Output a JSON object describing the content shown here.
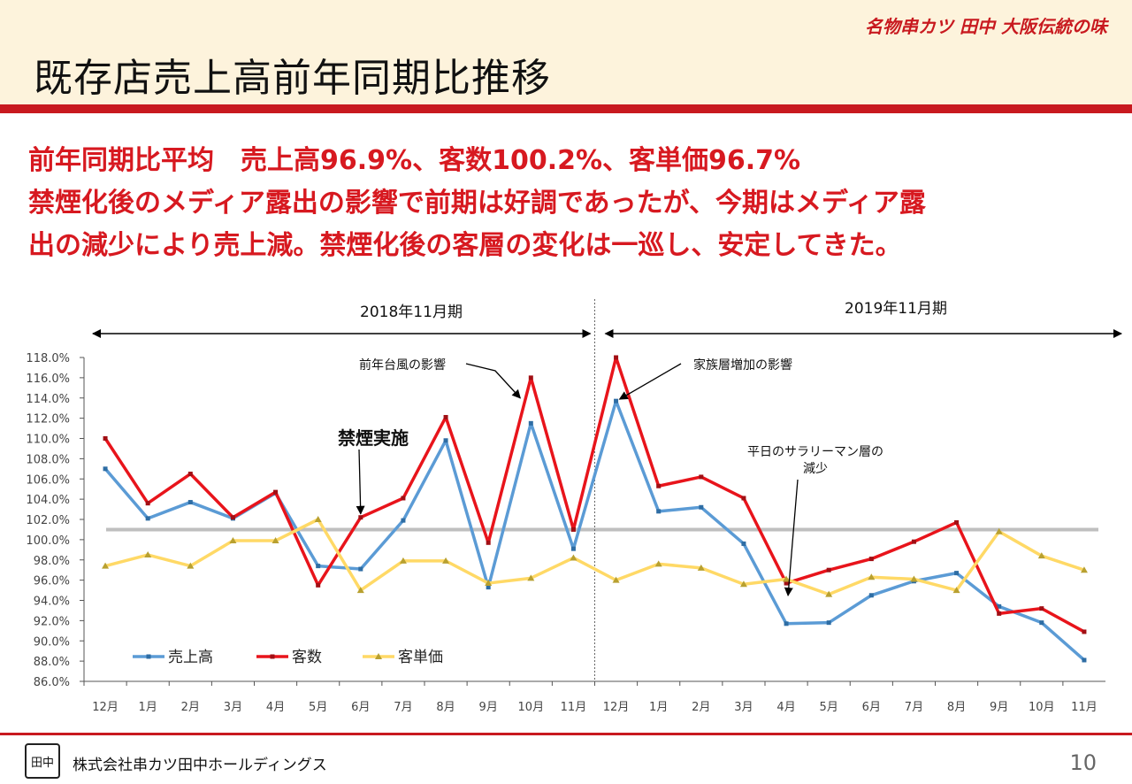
{
  "header": {
    "title": "既存店売上高前年同期比推移",
    "brand": "名物串カツ 田中 大阪伝統の味"
  },
  "headline": {
    "line1": "前年同期比平均　売上高96.9%、客数100.2%、客単価96.7%",
    "line2": "禁煙化後のメディア露出の影響で前期は好調であったが、今期はメディア露",
    "line3": "出の減少により売上減。禁煙化後の客層の変化は一巡し、安定してきた。"
  },
  "footer": {
    "company": "株式会社串カツ田中ホールディングス",
    "page": "10"
  },
  "colors": {
    "accent": "#c8191f",
    "sales": "#5b9bd5",
    "customers": "#e8141b",
    "unit_price": "#ffd966",
    "reference": "#bfbfbf"
  },
  "chart_data": {
    "type": "line",
    "periods": [
      {
        "label": "2018年11月期",
        "start": 0,
        "end": 11
      },
      {
        "label": "2019年11月期",
        "start": 12,
        "end": 23
      }
    ],
    "categories": [
      "12月",
      "1月",
      "2月",
      "3月",
      "4月",
      "5月",
      "6月",
      "7月",
      "8月",
      "9月",
      "10月",
      "11月",
      "12月",
      "1月",
      "2月",
      "3月",
      "4月",
      "5月",
      "6月",
      "7月",
      "8月",
      "9月",
      "10月",
      "11月"
    ],
    "series": [
      {
        "name": "売上高",
        "color": "#5b9bd5",
        "values": [
          107.0,
          102.1,
          103.7,
          102.1,
          104.6,
          97.4,
          97.1,
          101.9,
          109.8,
          95.3,
          111.5,
          99.1,
          113.7,
          102.8,
          103.2,
          99.6,
          91.7,
          91.8,
          94.5,
          95.9,
          96.7,
          93.4,
          91.8,
          88.1
        ]
      },
      {
        "name": "客数",
        "color": "#e8141b",
        "values": [
          110.0,
          103.6,
          106.5,
          102.2,
          104.7,
          95.5,
          102.2,
          104.1,
          112.1,
          99.7,
          116.0,
          101.0,
          118.0,
          105.3,
          106.2,
          104.1,
          95.7,
          97.0,
          98.1,
          99.8,
          101.7,
          92.7,
          93.2,
          90.9
        ]
      },
      {
        "name": "客単価",
        "color": "#ffd966",
        "values": [
          97.4,
          98.5,
          97.4,
          99.9,
          99.9,
          102.0,
          95.0,
          97.9,
          97.9,
          95.7,
          96.2,
          98.2,
          96.0,
          97.6,
          97.2,
          95.6,
          96.1,
          94.6,
          96.3,
          96.1,
          95.0,
          100.8,
          98.4,
          97.0
        ]
      }
    ],
    "reference_line": 101.0,
    "ylim": [
      86.0,
      118.0
    ],
    "ytick_step": 2.0,
    "ytick_format": "%",
    "annotations": [
      {
        "text": "前年台風の影響",
        "target_index": 10,
        "target_series": 1
      },
      {
        "text": "禁煙実施",
        "target_index": 6,
        "target_series": 1
      },
      {
        "text": "家族層増加の影響",
        "target_index": 12,
        "target_series": 0
      },
      {
        "text": "平日のサラリーマン層の",
        "text2": "減少",
        "target_index": 16,
        "target_series": 1
      }
    ],
    "legend": [
      "売上高",
      "客数",
      "客単価"
    ],
    "legend_position": "bottom-left"
  }
}
